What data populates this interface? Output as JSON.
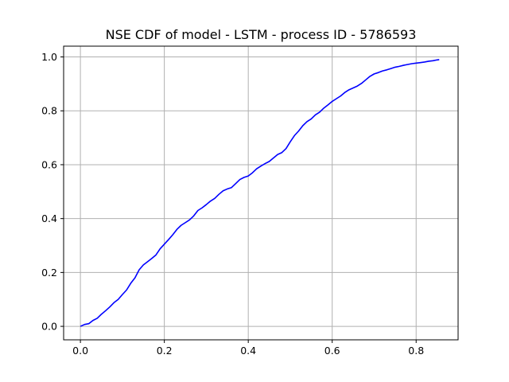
{
  "chart_data": {
    "type": "line",
    "title": "NSE CDF of model - LSTM - process ID - 5786593",
    "xlabel": "",
    "ylabel": "",
    "xlim": [
      -0.04,
      0.9
    ],
    "ylim": [
      -0.05,
      1.04
    ],
    "grid": true,
    "x_ticks": [
      0.0,
      0.2,
      0.4,
      0.6,
      0.8
    ],
    "x_tick_labels": [
      "0.0",
      "0.2",
      "0.4",
      "0.6",
      "0.8"
    ],
    "y_ticks": [
      0.0,
      0.2,
      0.4,
      0.6,
      0.8,
      1.0
    ],
    "y_tick_labels": [
      "0.0",
      "0.2",
      "0.4",
      "0.6",
      "0.8",
      "1.0"
    ],
    "series": [
      {
        "color": "#0000ff",
        "x": [
          0.0,
          0.01,
          0.02,
          0.03,
          0.04,
          0.05,
          0.06,
          0.07,
          0.08,
          0.09,
          0.1,
          0.11,
          0.12,
          0.13,
          0.14,
          0.15,
          0.16,
          0.17,
          0.18,
          0.19,
          0.2,
          0.21,
          0.22,
          0.23,
          0.24,
          0.25,
          0.26,
          0.27,
          0.28,
          0.29,
          0.3,
          0.31,
          0.32,
          0.33,
          0.34,
          0.35,
          0.36,
          0.37,
          0.38,
          0.39,
          0.4,
          0.41,
          0.42,
          0.43,
          0.44,
          0.45,
          0.46,
          0.47,
          0.48,
          0.49,
          0.5,
          0.51,
          0.52,
          0.53,
          0.54,
          0.55,
          0.56,
          0.57,
          0.58,
          0.59,
          0.6,
          0.61,
          0.62,
          0.63,
          0.64,
          0.65,
          0.66,
          0.67,
          0.68,
          0.69,
          0.7,
          0.71,
          0.72,
          0.73,
          0.74,
          0.75,
          0.76,
          0.77,
          0.78,
          0.79,
          0.8,
          0.81,
          0.82,
          0.83,
          0.84,
          0.85,
          0.855
        ],
        "y": [
          0.0,
          0.007,
          0.01,
          0.022,
          0.03,
          0.045,
          0.058,
          0.072,
          0.088,
          0.1,
          0.118,
          0.135,
          0.16,
          0.18,
          0.21,
          0.228,
          0.24,
          0.252,
          0.265,
          0.288,
          0.305,
          0.322,
          0.34,
          0.36,
          0.375,
          0.385,
          0.395,
          0.41,
          0.43,
          0.44,
          0.452,
          0.465,
          0.475,
          0.49,
          0.503,
          0.51,
          0.515,
          0.53,
          0.545,
          0.553,
          0.558,
          0.57,
          0.585,
          0.595,
          0.604,
          0.612,
          0.625,
          0.638,
          0.645,
          0.66,
          0.685,
          0.708,
          0.725,
          0.745,
          0.76,
          0.77,
          0.785,
          0.795,
          0.81,
          0.822,
          0.835,
          0.845,
          0.855,
          0.868,
          0.878,
          0.885,
          0.892,
          0.902,
          0.915,
          0.928,
          0.937,
          0.942,
          0.948,
          0.952,
          0.957,
          0.962,
          0.965,
          0.969,
          0.972,
          0.975,
          0.977,
          0.979,
          0.981,
          0.984,
          0.986,
          0.989,
          0.99
        ]
      }
    ]
  }
}
